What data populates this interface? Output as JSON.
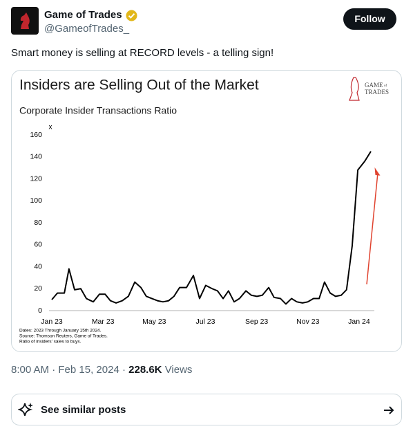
{
  "author": {
    "name": "Game of Trades",
    "handle": "@GameofTrades_"
  },
  "follow_button": "Follow",
  "tweet_text": "Smart money is selling at RECORD levels - a telling sign!",
  "chart_data": {
    "type": "line",
    "title": "Insiders are Selling Out of the Market",
    "subtitle": "Corporate Insider Transactions Ratio",
    "y_unit_label": "x",
    "logo": [
      "GAME",
      "of",
      "TRADES"
    ],
    "x": [
      0,
      0.22,
      0.49,
      0.67,
      0.89,
      1.13,
      1.35,
      1.62,
      1.86,
      2.08,
      2.29,
      2.51,
      2.75,
      2.99,
      3.24,
      3.48,
      3.69,
      3.91,
      4.13,
      4.34,
      4.56,
      4.77,
      4.99,
      5.26,
      5.53,
      5.77,
      6.01,
      6.26,
      6.47,
      6.69,
      6.9,
      7.12,
      7.33,
      7.58,
      7.79,
      8.01,
      8.22,
      8.47,
      8.68,
      8.93,
      9.14,
      9.36,
      9.57,
      9.79,
      10,
      10.22,
      10.44,
      10.65,
      10.87,
      11.08,
      11.3,
      11.51,
      11.73,
      11.95,
      12.22,
      12.46
    ],
    "values": [
      10,
      16,
      16,
      38,
      19,
      20,
      11,
      8,
      15,
      15,
      9,
      7,
      9,
      13,
      26,
      21,
      13,
      11,
      9,
      8,
      9,
      13,
      21,
      21,
      32,
      11,
      23,
      20,
      18,
      11,
      18,
      8,
      11,
      18,
      14,
      13,
      14,
      21,
      12,
      11,
      6,
      11,
      8,
      7,
      8,
      11,
      11,
      26,
      16,
      13,
      14,
      19,
      59,
      128,
      136,
      145
    ],
    "color": "#000000",
    "xlim": [
      -0.1,
      12.6
    ],
    "xticks": [
      {
        "value": 0,
        "label": "Jan 23"
      },
      {
        "value": 2,
        "label": "Mar 23"
      },
      {
        "value": 4,
        "label": "May 23"
      },
      {
        "value": 6,
        "label": "Jul 23"
      },
      {
        "value": 8,
        "label": "Sep 23"
      },
      {
        "value": 10,
        "label": "Nov 23"
      },
      {
        "value": 12,
        "label": "Jan 24"
      }
    ],
    "ylim": [
      0,
      160
    ],
    "yticks": [
      0,
      20,
      40,
      60,
      80,
      100,
      120,
      140,
      160
    ],
    "grid": false,
    "notes": [
      "Dates: 2023 Through January 15th 2024.",
      "Source: Thomson Reuters, Game of Trades.",
      "Ratio of insiders' sales to buys."
    ]
  },
  "meta": {
    "time": "8:00 AM",
    "separator": "·",
    "date": "Feb 15, 2024",
    "views": "228.6K",
    "views_label": "Views"
  },
  "similar_posts": "See similar posts"
}
